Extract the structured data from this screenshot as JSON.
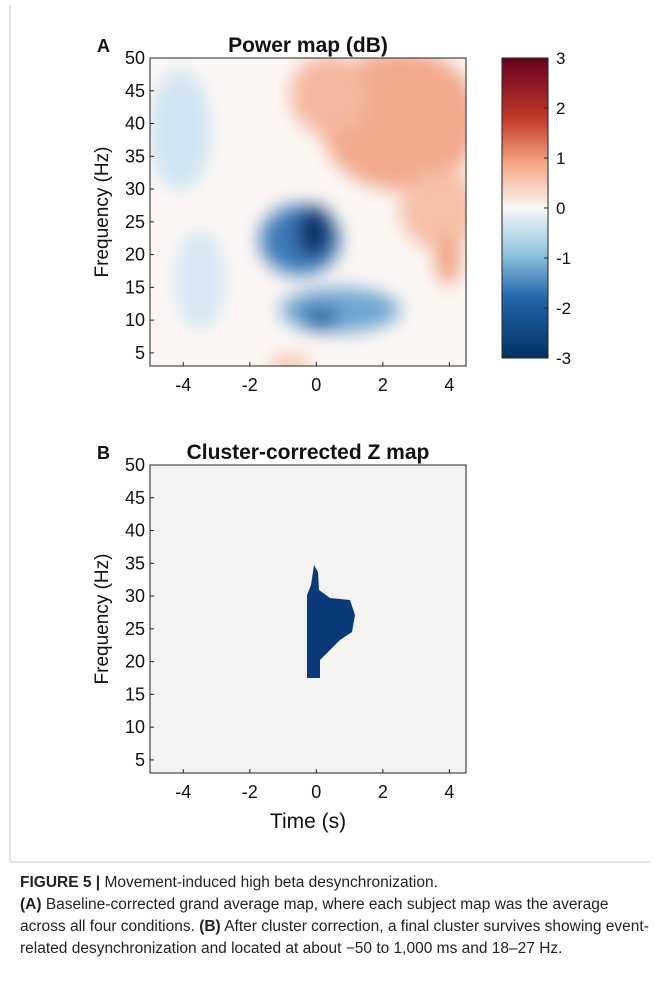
{
  "figure": {
    "panels": [
      {
        "letter": "A",
        "title": "Power map (dB)",
        "ylabel": "Frequency (Hz)",
        "xlim": [
          -5,
          4.5
        ],
        "xticks": [
          -4,
          -2,
          0,
          2,
          4
        ],
        "ylim": [
          3,
          50
        ],
        "yticks": [
          5,
          10,
          15,
          20,
          25,
          30,
          35,
          40,
          45,
          50
        ],
        "colorbar": {
          "lim": [
            -3,
            3
          ],
          "ticks": [
            -3,
            -2,
            -1,
            0,
            1,
            2,
            3
          ]
        }
      },
      {
        "letter": "B",
        "title": "Cluster-corrected Z map",
        "ylabel": "Frequency (Hz)",
        "xlabel": "Time (s)",
        "xlim": [
          -5,
          4.5
        ],
        "xticks": [
          -4,
          -2,
          0,
          2,
          4
        ],
        "ylim": [
          3,
          50
        ],
        "yticks": [
          5,
          10,
          15,
          20,
          25,
          30,
          35,
          40,
          45,
          50
        ]
      }
    ],
    "caption": {
      "label": "FIGURE 5 |",
      "title": "Movement-induced high beta desynchronization.",
      "a_label": "(A)",
      "a_text": "Baseline-corrected grand average map, where each subject map was the average across all four conditions.",
      "b_label": "(B)",
      "b_text": "After cluster correction, a final cluster survives showing event-related desynchronization and located at about −50 to 1,000 ms and 18–27 Hz."
    }
  }
}
